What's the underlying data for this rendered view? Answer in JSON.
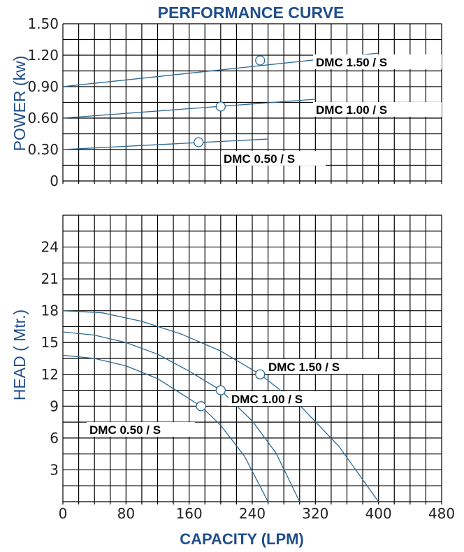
{
  "title": "PERFORMANCE CURVE",
  "accent_color": "#1f4e8c",
  "curve_color": "#2d6a96",
  "chart_data": [
    {
      "type": "line",
      "name": "power",
      "ylabel": "POWER (kw)",
      "xlim": [
        0,
        480
      ],
      "ylim": [
        0,
        1.5
      ],
      "y_ticks": [
        "0",
        "0.30",
        "0.60",
        "0.90",
        "1.20",
        "1.50"
      ],
      "series": [
        {
          "name": "DMC 1.50 / S",
          "x": [
            0,
            400
          ],
          "y": [
            0.9,
            1.22
          ],
          "marker": {
            "x": 250,
            "y": 1.15
          }
        },
        {
          "name": "DMC 1.00 / S",
          "x": [
            0,
            320
          ],
          "y": [
            0.6,
            0.78
          ],
          "marker": {
            "x": 200,
            "y": 0.71
          }
        },
        {
          "name": "DMC 0.50 / S",
          "x": [
            0,
            260
          ],
          "y": [
            0.3,
            0.4
          ],
          "marker": {
            "x": 172,
            "y": 0.37
          }
        }
      ]
    },
    {
      "type": "line",
      "name": "head",
      "ylabel": "HEAD ( Mtr.)",
      "xlabel": "CAPACITY (LPM)",
      "xlim": [
        0,
        480
      ],
      "ylim": [
        0,
        27
      ],
      "x_ticks": [
        "0",
        "80",
        "160",
        "240",
        "320",
        "400",
        "480"
      ],
      "y_ticks": [
        "3",
        "6",
        "9",
        "12",
        "15",
        "18",
        "21",
        "24"
      ],
      "series": [
        {
          "name": "DMC 1.50  / S",
          "x": [
            0,
            50,
            100,
            150,
            200,
            250,
            300,
            350,
            400
          ],
          "y": [
            18,
            17.8,
            17,
            15.8,
            14.2,
            12,
            9.1,
            5.2,
            0
          ],
          "marker": {
            "x": 250,
            "y": 12
          }
        },
        {
          "name": "DMC 1.00 / S",
          "x": [
            0,
            40,
            80,
            120,
            160,
            200,
            240,
            270,
            300
          ],
          "y": [
            16,
            15.7,
            15,
            13.9,
            12.3,
            10.5,
            7.6,
            4.6,
            0
          ],
          "marker": {
            "x": 200,
            "y": 10.5
          }
        },
        {
          "name": "DMC 0.50 / S",
          "x": [
            0,
            40,
            80,
            120,
            160,
            175,
            200,
            230,
            260
          ],
          "y": [
            13.8,
            13.5,
            12.8,
            11.6,
            9.7,
            9,
            7.2,
            4.3,
            0
          ],
          "marker": {
            "x": 175,
            "y": 9
          }
        }
      ]
    }
  ]
}
